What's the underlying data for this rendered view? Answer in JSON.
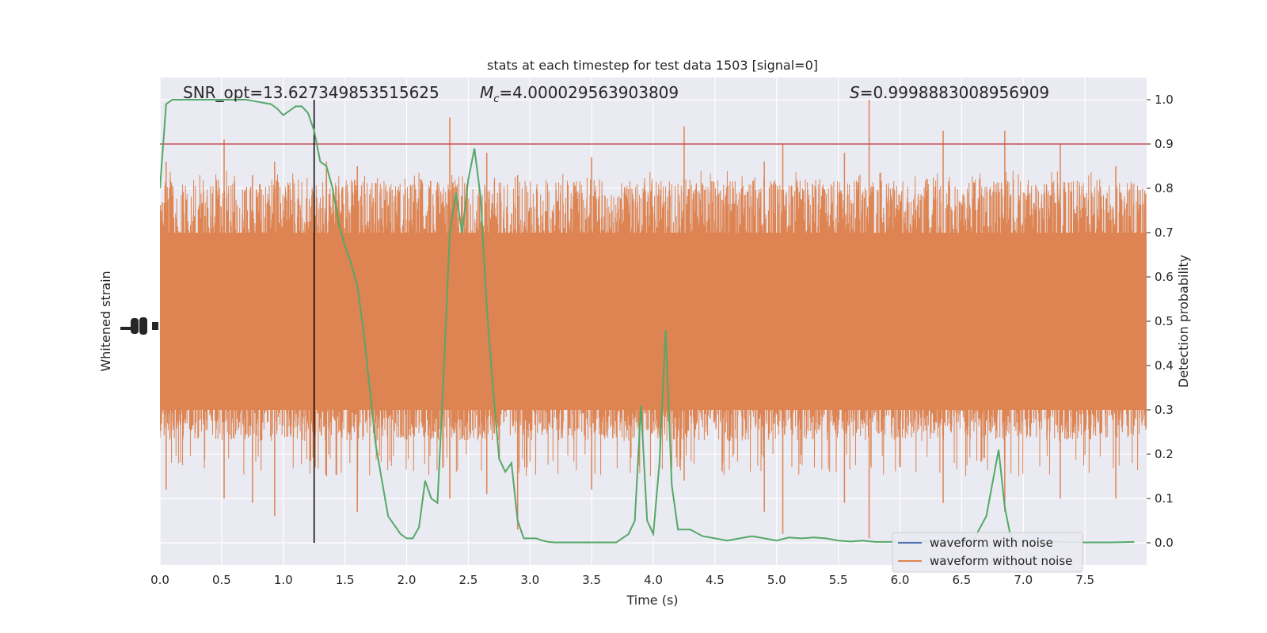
{
  "chart_data": {
    "type": "line",
    "title": "stats at each timestep for test data 1503 [signal=0]",
    "xlabel": "Time (s)",
    "ylabel_left": "Whitened strain",
    "ylabel_right": "Detection probability",
    "xlim": [
      0,
      8
    ],
    "ylim_right": [
      -0.05,
      1.05
    ],
    "x_ticks": [
      "0.0",
      "0.5",
      "1.0",
      "1.5",
      "2.0",
      "2.5",
      "3.0",
      "3.5",
      "4.0",
      "4.5",
      "5.0",
      "5.5",
      "6.0",
      "6.5",
      "7.0",
      "7.5"
    ],
    "y_ticks_right": [
      "0.0",
      "0.1",
      "0.2",
      "0.3",
      "0.4",
      "0.5",
      "0.6",
      "0.7",
      "0.8",
      "0.9",
      "1.0"
    ],
    "annotations": {
      "snr": "SNR_opt=13.627349853515625",
      "mc_symbol": "M",
      "mc_sub": "c",
      "mc_value": "=4.000029563903809",
      "s_symbol": "S",
      "s_value": "=0.9998883008956909"
    },
    "threshold": 0.9,
    "vertical_marker_x": 1.25,
    "strain_color": "#dd8452",
    "probability_color": "#55a868",
    "threshold_color": "#c44e52",
    "noisy_color": "#4c72b0",
    "background_color": "#eaeaf2",
    "legend": [
      {
        "label": "waveform with noise",
        "color": "#4c72b0"
      },
      {
        "label": "waveform without noise",
        "color": "#dd8452"
      }
    ],
    "legend_position": "lower-right",
    "grid": true,
    "series": [
      {
        "name": "waveform with noise",
        "color": "#4c72b0",
        "x": [
          0,
          8
        ],
        "y": [
          0.5,
          0.5
        ]
      },
      {
        "name": "waveform without noise",
        "color": "#dd8452",
        "note_envelope": "dense whitened strain, typical band 0.23 to 0.80 with spikes",
        "spikes_x": [
          0.05,
          0.52,
          0.75,
          0.93,
          1.35,
          1.6,
          2.35,
          2.65,
          2.9,
          3.5,
          4.25,
          4.9,
          5.05,
          5.55,
          5.75,
          6.35,
          6.85,
          7.3,
          7.75
        ],
        "spikes_high": [
          0.86,
          0.91,
          0.83,
          0.86,
          0.86,
          0.85,
          0.96,
          0.88,
          0.83,
          0.87,
          0.94,
          0.86,
          0.9,
          0.88,
          1.0,
          0.93,
          0.93,
          0.9,
          0.85
        ],
        "spikes_low": [
          0.12,
          0.1,
          0.09,
          0.06,
          0.15,
          0.07,
          0.1,
          0.11,
          0.03,
          0.12,
          0.14,
          0.07,
          0.02,
          0.09,
          0.01,
          0.09,
          0.07,
          0.1,
          0.1
        ]
      },
      {
        "name": "detection probability",
        "color": "#55a868",
        "x": [
          0.0,
          0.05,
          0.1,
          0.2,
          0.3,
          0.4,
          0.5,
          0.6,
          0.7,
          0.8,
          0.9,
          0.95,
          1.0,
          1.05,
          1.1,
          1.15,
          1.2,
          1.25,
          1.3,
          1.35,
          1.4,
          1.45,
          1.5,
          1.55,
          1.6,
          1.65,
          1.7,
          1.75,
          1.8,
          1.85,
          1.9,
          1.95,
          2.0,
          2.05,
          2.1,
          2.15,
          2.2,
          2.25,
          2.3,
          2.35,
          2.4,
          2.45,
          2.5,
          2.55,
          2.6,
          2.65,
          2.7,
          2.75,
          2.8,
          2.85,
          2.9,
          2.95,
          3.0,
          3.05,
          3.1,
          3.15,
          3.2,
          3.3,
          3.4,
          3.5,
          3.6,
          3.7,
          3.8,
          3.85,
          3.9,
          3.95,
          4.0,
          4.05,
          4.1,
          4.15,
          4.2,
          4.25,
          4.3,
          4.4,
          4.5,
          4.6,
          4.7,
          4.8,
          4.9,
          5.0,
          5.1,
          5.2,
          5.3,
          5.4,
          5.5,
          5.6,
          5.7,
          5.8,
          5.9,
          6.0,
          6.1,
          6.2,
          6.3,
          6.4,
          6.5,
          6.6,
          6.7,
          6.8,
          6.85,
          6.9,
          6.95,
          7.0,
          7.1,
          7.3,
          7.5,
          7.7,
          7.9
        ],
        "y": [
          0.8,
          0.99,
          1.0,
          1.0,
          1.0,
          1.0,
          1.0,
          1.0,
          1.0,
          0.995,
          0.99,
          0.98,
          0.965,
          0.975,
          0.985,
          0.985,
          0.97,
          0.93,
          0.86,
          0.85,
          0.8,
          0.72,
          0.67,
          0.63,
          0.58,
          0.48,
          0.35,
          0.22,
          0.14,
          0.06,
          0.04,
          0.02,
          0.01,
          0.01,
          0.035,
          0.14,
          0.1,
          0.09,
          0.38,
          0.7,
          0.79,
          0.7,
          0.82,
          0.89,
          0.78,
          0.53,
          0.35,
          0.19,
          0.16,
          0.18,
          0.05,
          0.01,
          0.01,
          0.01,
          0.005,
          0.002,
          0.001,
          0.001,
          0.001,
          0.001,
          0.001,
          0.001,
          0.02,
          0.05,
          0.31,
          0.05,
          0.02,
          0.18,
          0.48,
          0.13,
          0.03,
          0.03,
          0.03,
          0.015,
          0.01,
          0.005,
          0.01,
          0.015,
          0.01,
          0.005,
          0.012,
          0.01,
          0.012,
          0.01,
          0.005,
          0.003,
          0.005,
          0.002,
          0.002,
          0.003,
          0.003,
          0.003,
          0.002,
          0.002,
          0.002,
          0.008,
          0.06,
          0.21,
          0.08,
          0.01,
          0.003,
          0.002,
          0.002,
          0.002,
          0.001,
          0.001,
          0.002
        ]
      }
    ]
  }
}
